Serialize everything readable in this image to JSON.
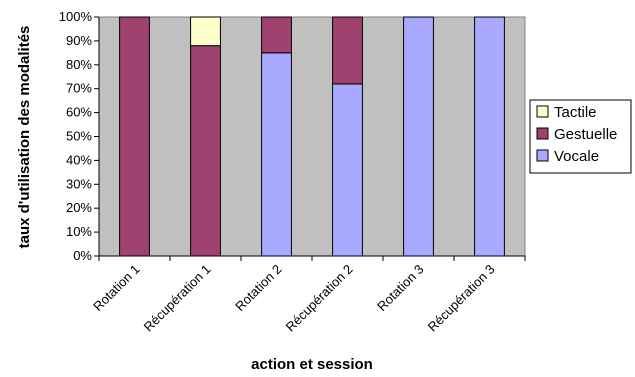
{
  "chart_data": {
    "type": "bar",
    "stacking": "percent",
    "title": "",
    "xlabel": "action et session",
    "ylabel": "taux d'utilisation des modalités",
    "ylim": [
      0,
      100
    ],
    "y_ticks": [
      "0%",
      "10%",
      "20%",
      "30%",
      "40%",
      "50%",
      "60%",
      "70%",
      "80%",
      "90%",
      "100%"
    ],
    "categories": [
      "Rotation 1",
      "Récupération 1",
      "Rotation 2",
      "Récupération 2",
      "Rotation 3",
      "Récupération 3"
    ],
    "series": [
      {
        "name": "Vocale",
        "color": "#a9a9ff",
        "values": [
          0,
          0,
          85,
          72,
          100,
          100
        ]
      },
      {
        "name": "Gestuelle",
        "color": "#a0426f",
        "values": [
          100,
          88,
          15,
          28,
          0,
          0
        ]
      },
      {
        "name": "Tactile",
        "color": "#ffffcc",
        "values": [
          0,
          12,
          0,
          0,
          0,
          0
        ]
      }
    ],
    "legend_order": [
      "Tactile",
      "Gestuelle",
      "Vocale"
    ],
    "legend_position": "right",
    "plot_background": "#c0c0c0",
    "grid": false
  }
}
